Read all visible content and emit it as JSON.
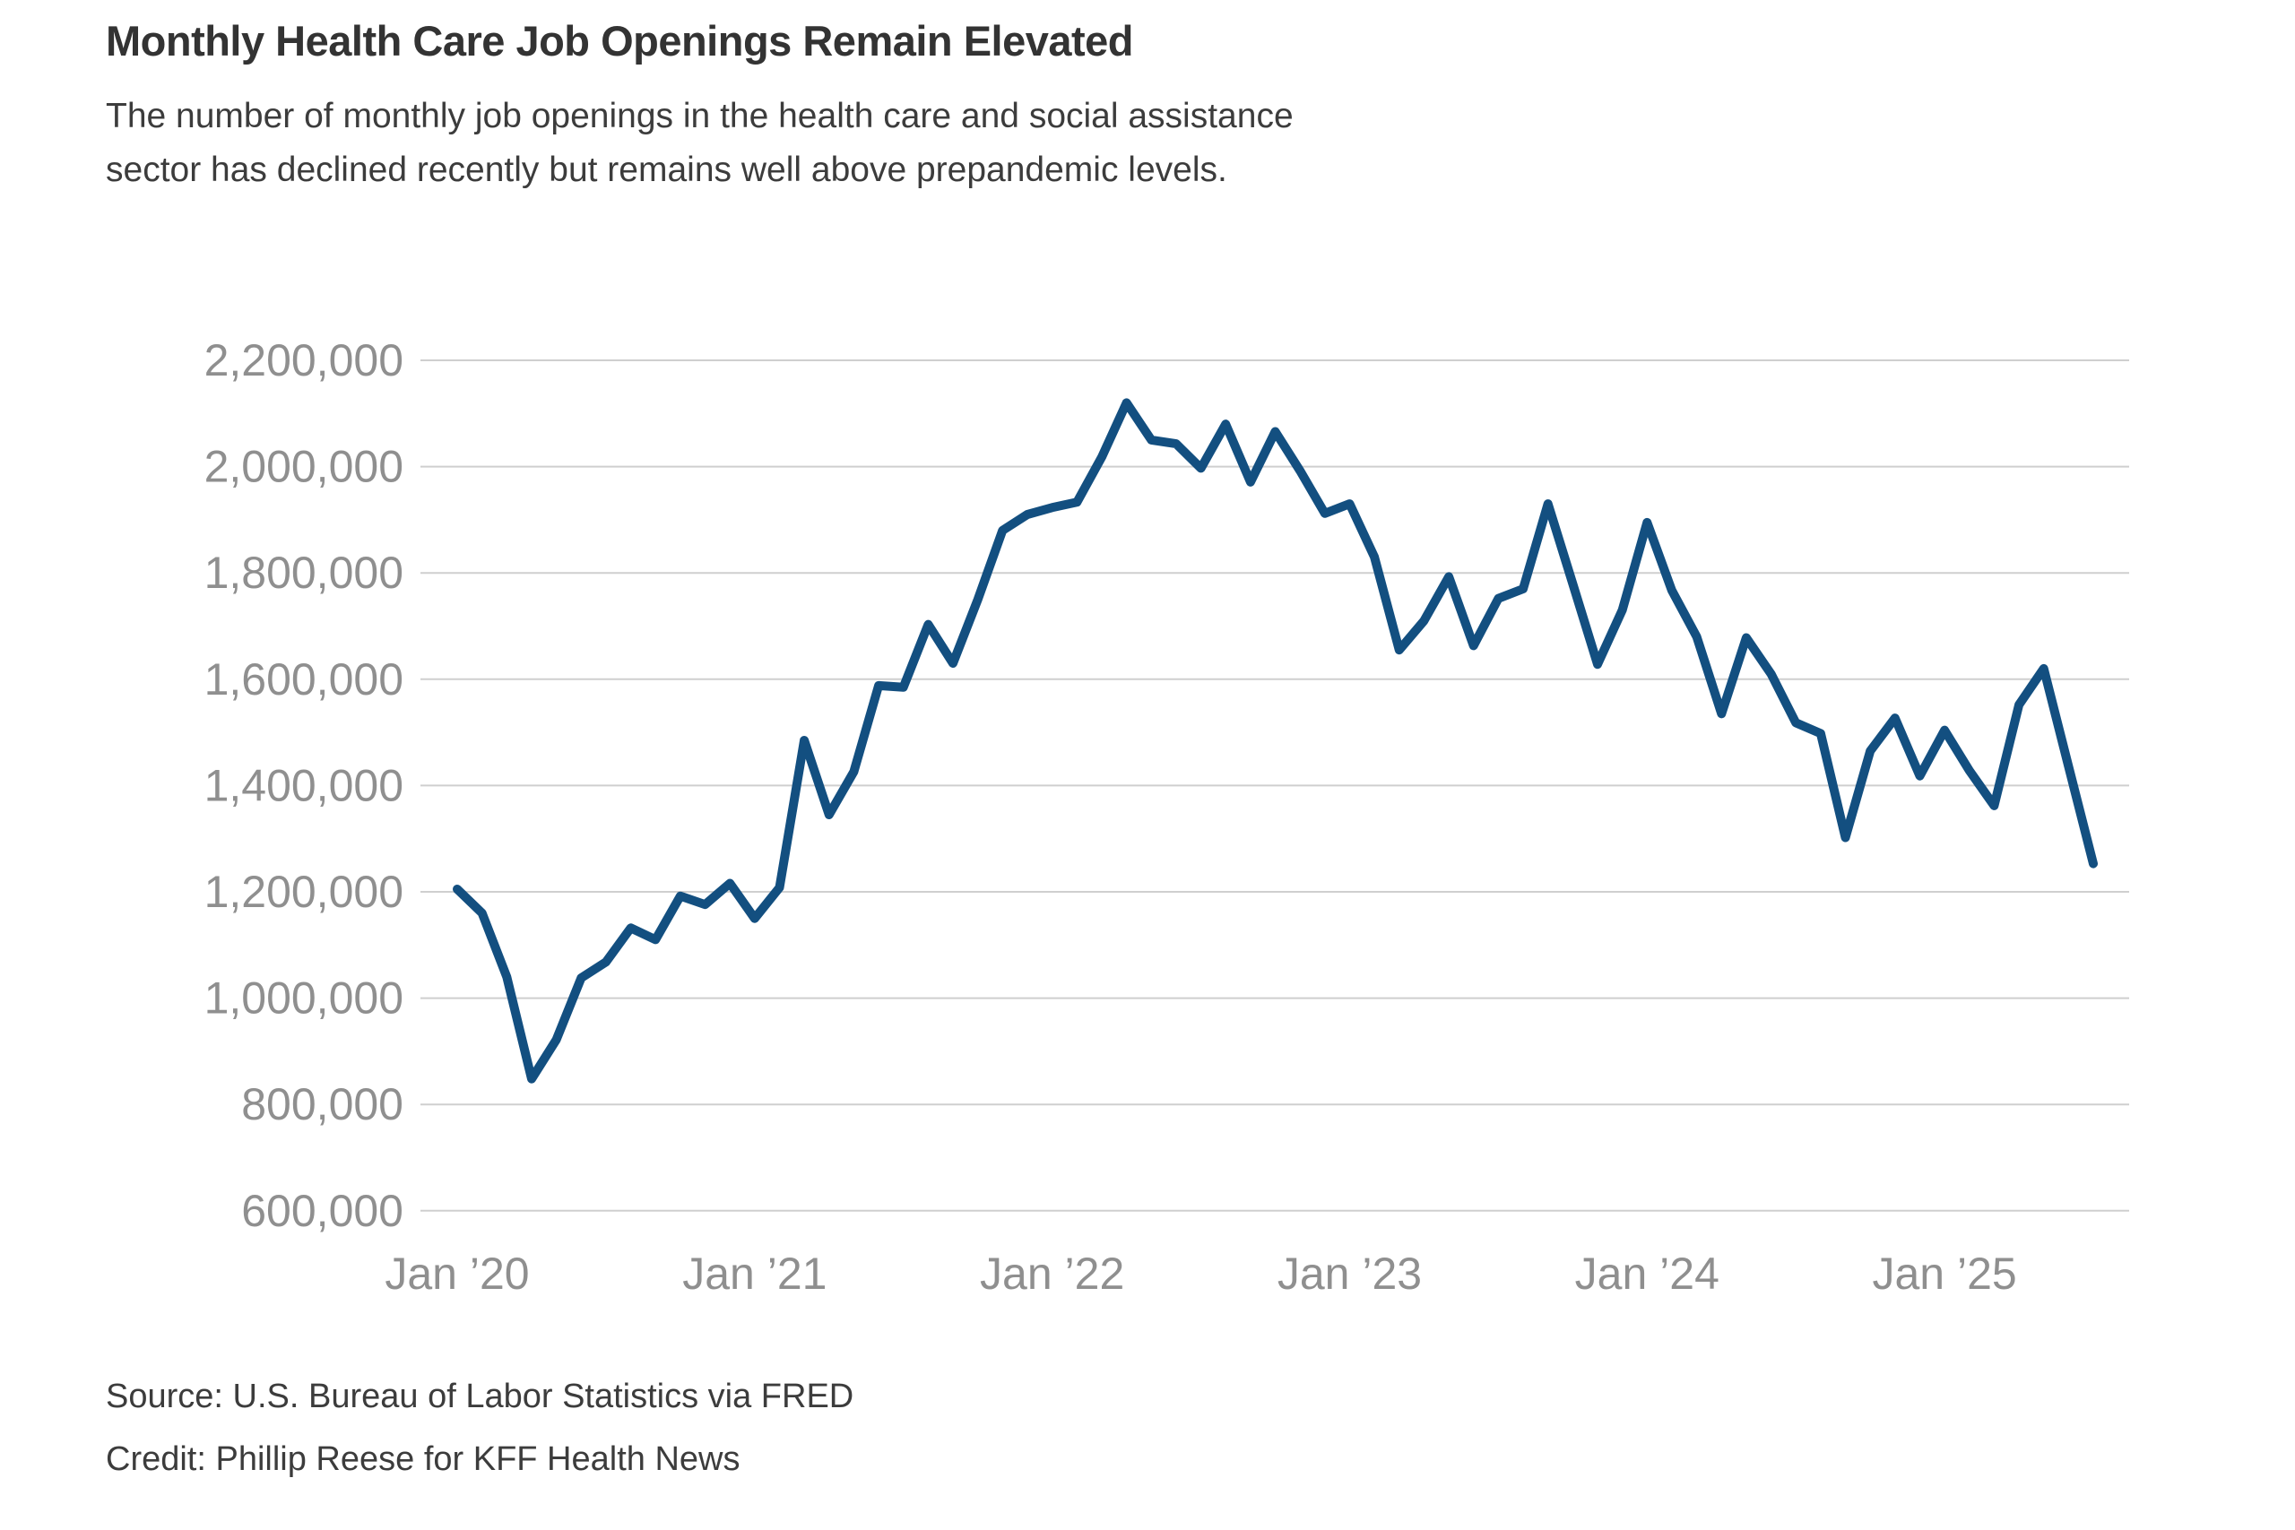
{
  "header": {
    "title": "Monthly Health Care Job Openings Remain Elevated",
    "subtitle": "The number of monthly job openings in the health care and social assistance sector has declined recently but remains well above prepandemic levels."
  },
  "footer": {
    "source": "Source: U.S. Bureau of Labor Statistics via FRED",
    "credit": "Credit: Phillip Reese for KFF Health News"
  },
  "colors": {
    "line": "#134F80",
    "grid": "#cfcfcf",
    "axis_text": "#8f8f8f",
    "title_text": "#333333",
    "body_text": "#3c3c3c",
    "background": "#ffffff"
  },
  "chart_data": {
    "type": "line",
    "series_name": "Monthly job openings, health care and social assistance sector",
    "frequency": "monthly",
    "start_month": "2020-01",
    "end_month": "2025-07",
    "ylim": [
      600000,
      2200000
    ],
    "y_tick_step": 200000,
    "y_tick_labels": [
      "600,000",
      "800,000",
      "1,000,000",
      "1,200,000",
      "1,400,000",
      "1,600,000",
      "1,800,000",
      "2,000,000",
      "2,200,000"
    ],
    "x_tick_labels": [
      "Jan ’20",
      "Jan ’21",
      "Jan ’22",
      "Jan ’23",
      "Jan ’24",
      "Jan ’25"
    ],
    "grid": "horizontal",
    "legend": "none",
    "x_months": [
      "2020-01",
      "2020-02",
      "2020-03",
      "2020-04",
      "2020-05",
      "2020-06",
      "2020-07",
      "2020-08",
      "2020-09",
      "2020-10",
      "2020-11",
      "2020-12",
      "2021-01",
      "2021-02",
      "2021-03",
      "2021-04",
      "2021-05",
      "2021-06",
      "2021-07",
      "2021-08",
      "2021-09",
      "2021-10",
      "2021-11",
      "2021-12",
      "2022-01",
      "2022-02",
      "2022-03",
      "2022-04",
      "2022-05",
      "2022-06",
      "2022-07",
      "2022-08",
      "2022-09",
      "2022-10",
      "2022-11",
      "2022-12",
      "2023-01",
      "2023-02",
      "2023-03",
      "2023-04",
      "2023-05",
      "2023-06",
      "2023-07",
      "2023-08",
      "2023-09",
      "2023-10",
      "2023-11",
      "2023-12",
      "2024-01",
      "2024-02",
      "2024-03",
      "2024-04",
      "2024-05",
      "2024-06",
      "2024-07",
      "2024-08",
      "2024-09",
      "2024-10",
      "2024-11",
      "2024-12",
      "2025-01",
      "2025-02",
      "2025-03",
      "2025-04",
      "2025-05",
      "2025-06",
      "2025-07"
    ],
    "values": [
      1205000,
      1160000,
      1040000,
      848000,
      922000,
      1038000,
      1068000,
      1132000,
      1110000,
      1192000,
      1176000,
      1216000,
      1150000,
      1208000,
      1485000,
      1345000,
      1426000,
      1588000,
      1585000,
      1703000,
      1630000,
      1750000,
      1880000,
      1910000,
      1923000,
      1933000,
      2018000,
      2120000,
      2050000,
      2043000,
      1997000,
      2080000,
      1971000,
      2066000,
      1992000,
      1912000,
      1930000,
      1830000,
      1655000,
      1710000,
      1793000,
      1663000,
      1752000,
      1770000,
      1930000,
      1780000,
      1628000,
      1730000,
      1895000,
      1767000,
      1680000,
      1535000,
      1678000,
      1610000,
      1518000,
      1498000,
      1302000,
      1465000,
      1527000,
      1418000,
      1504000,
      1428000,
      1362000,
      1552000,
      1620000,
      1436000,
      1253000
    ]
  }
}
